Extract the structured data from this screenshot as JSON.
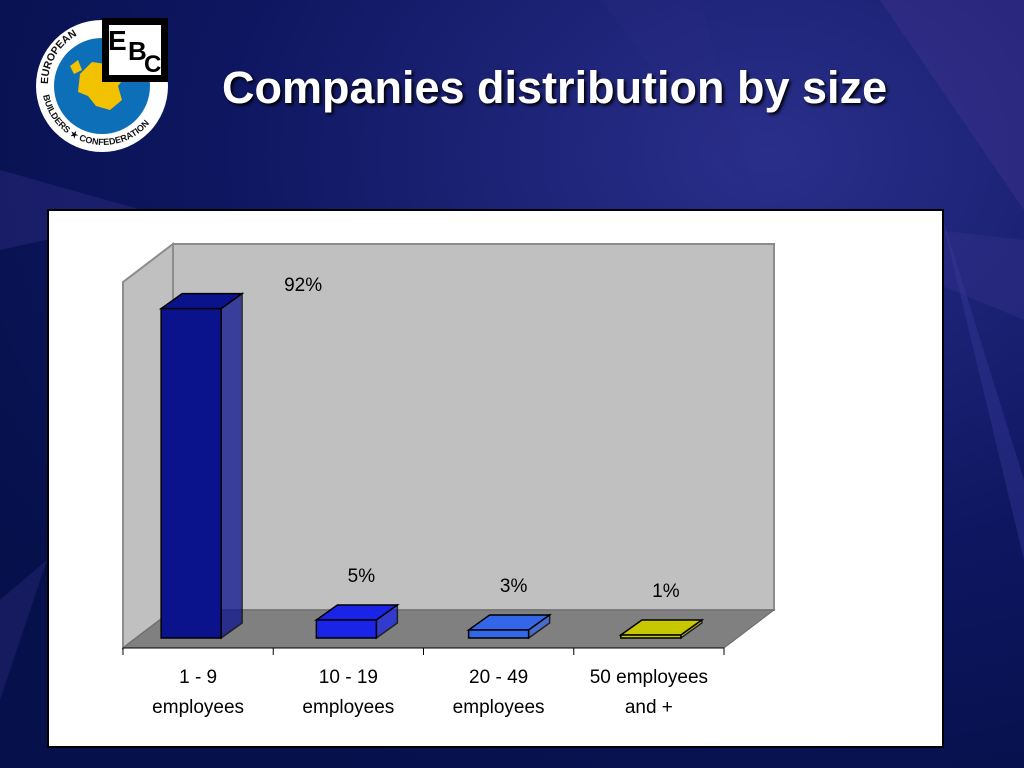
{
  "slide": {
    "title": "Companies distribution by size",
    "background_color": "#0a1450"
  },
  "logo": {
    "name": "European Builders Confederation",
    "ring_text_top": "EUROPEAN",
    "ring_text_bottom": "BUILDERS ★ CONFEDERATION",
    "letters": [
      "E",
      "B",
      "C"
    ]
  },
  "chart_data": {
    "type": "bar",
    "style": "3d-column",
    "categories": [
      [
        "1 - 9",
        "employees"
      ],
      [
        "10 - 19",
        "employees"
      ],
      [
        "20 - 49",
        "employees"
      ],
      [
        "50 employees",
        "and +"
      ]
    ],
    "values": [
      92,
      5,
      3,
      1
    ],
    "data_labels": [
      "92%",
      "5%",
      "3%",
      "1%"
    ],
    "colors": [
      "#0b138c",
      "#1a24e6",
      "#3366e8",
      "#c8c800"
    ],
    "ylim": [
      0,
      100
    ],
    "grid": false,
    "legend": "none",
    "wall_color": "#c0c0c0",
    "floor_color": "#808080"
  }
}
